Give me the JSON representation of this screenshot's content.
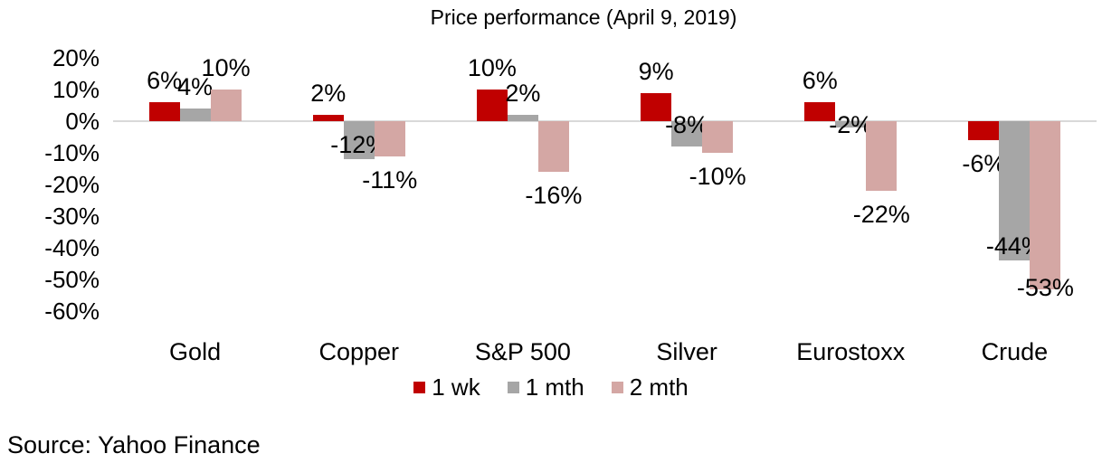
{
  "title": "Price performance (April 9, 2019)",
  "source": "Source: Yahoo Finance",
  "chart_data": {
    "type": "bar",
    "title": "Price performance (April 9, 2019)",
    "categories": [
      "Gold",
      "Copper",
      "S&P 500",
      "Silver",
      "Eurostoxx",
      "Crude"
    ],
    "series": [
      {
        "name": "1 wk",
        "color": "#c00000",
        "values": [
          6,
          2,
          10,
          9,
          6,
          -6
        ]
      },
      {
        "name": "1 mth",
        "color": "#a6a6a6",
        "values": [
          4,
          -12,
          2,
          -8,
          -2,
          -44
        ]
      },
      {
        "name": "2 mth",
        "color": "#d4a7a4",
        "values": [
          10,
          -11,
          -16,
          -10,
          -22,
          -53
        ]
      }
    ],
    "value_suffix": "%",
    "data_labels": {
      "gold": [
        "6%",
        "4%",
        "10%"
      ],
      "copper": [
        "2%",
        "-12%",
        "-11%"
      ],
      "sp500": [
        "10%",
        "2%",
        "-16%"
      ],
      "silver": [
        "9%",
        "-8%",
        "-10%"
      ],
      "eurostoxx": [
        "6%",
        "-2%",
        "-22%"
      ],
      "crude": [
        "-6%",
        "-44%",
        "-53%"
      ]
    },
    "ylim": [
      -60,
      20
    ],
    "ytick_step": 10,
    "ytick_labels": [
      "20%",
      "10%",
      "0%",
      "-10%",
      "-20%",
      "-30%",
      "-40%",
      "-50%",
      "-60%"
    ],
    "grid": false,
    "axis_line_color": "#d9d9d9",
    "legend_position": "bottom",
    "legend_labels": [
      "1 wk",
      "1 mth",
      "2 mth"
    ]
  }
}
